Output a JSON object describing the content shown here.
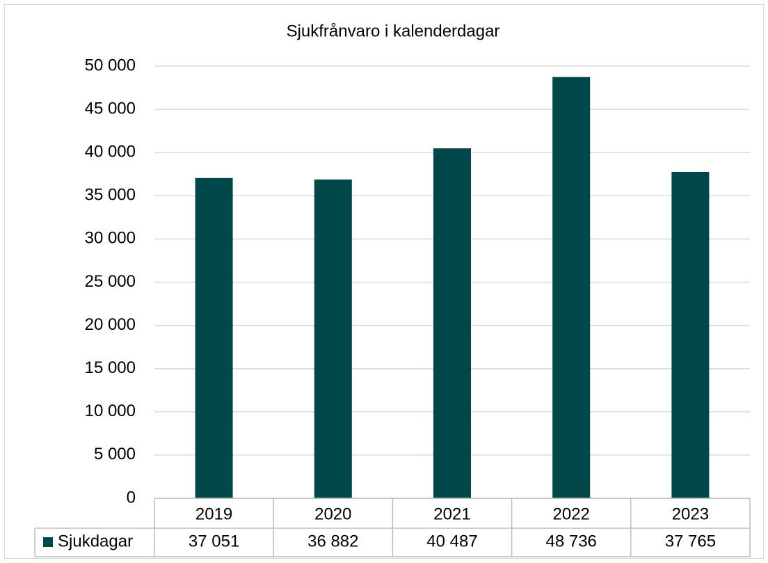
{
  "chart_data": {
    "type": "bar",
    "title": "Sjukfrånvaro i kalenderdagar",
    "categories": [
      "2019",
      "2020",
      "2021",
      "2022",
      "2023"
    ],
    "series": [
      {
        "name": "Sjukdagar",
        "color": "#00474a",
        "values": [
          37051,
          36882,
          40487,
          48736,
          37765
        ],
        "value_labels": [
          "37 051",
          "36 882",
          "40 487",
          "48 736",
          "37 765"
        ]
      }
    ],
    "ylim": [
      0,
      50000
    ],
    "yticks": [
      0,
      {
        "value": 5000,
        "label": "5 000"
      },
      {
        "value": 10000,
        "label": "10 000"
      },
      {
        "value": 15000,
        "label": "15 000"
      },
      {
        "value": 20000,
        "label": "20 000"
      },
      {
        "value": 25000,
        "label": "25 000"
      },
      {
        "value": 30000,
        "label": "30 000"
      },
      {
        "value": 35000,
        "label": "35 000"
      },
      {
        "value": 40000,
        "label": "40 000"
      },
      {
        "value": 45000,
        "label": "45 000"
      },
      {
        "value": 50000,
        "label": "50 000"
      }
    ],
    "grid": true,
    "data_table": true
  }
}
